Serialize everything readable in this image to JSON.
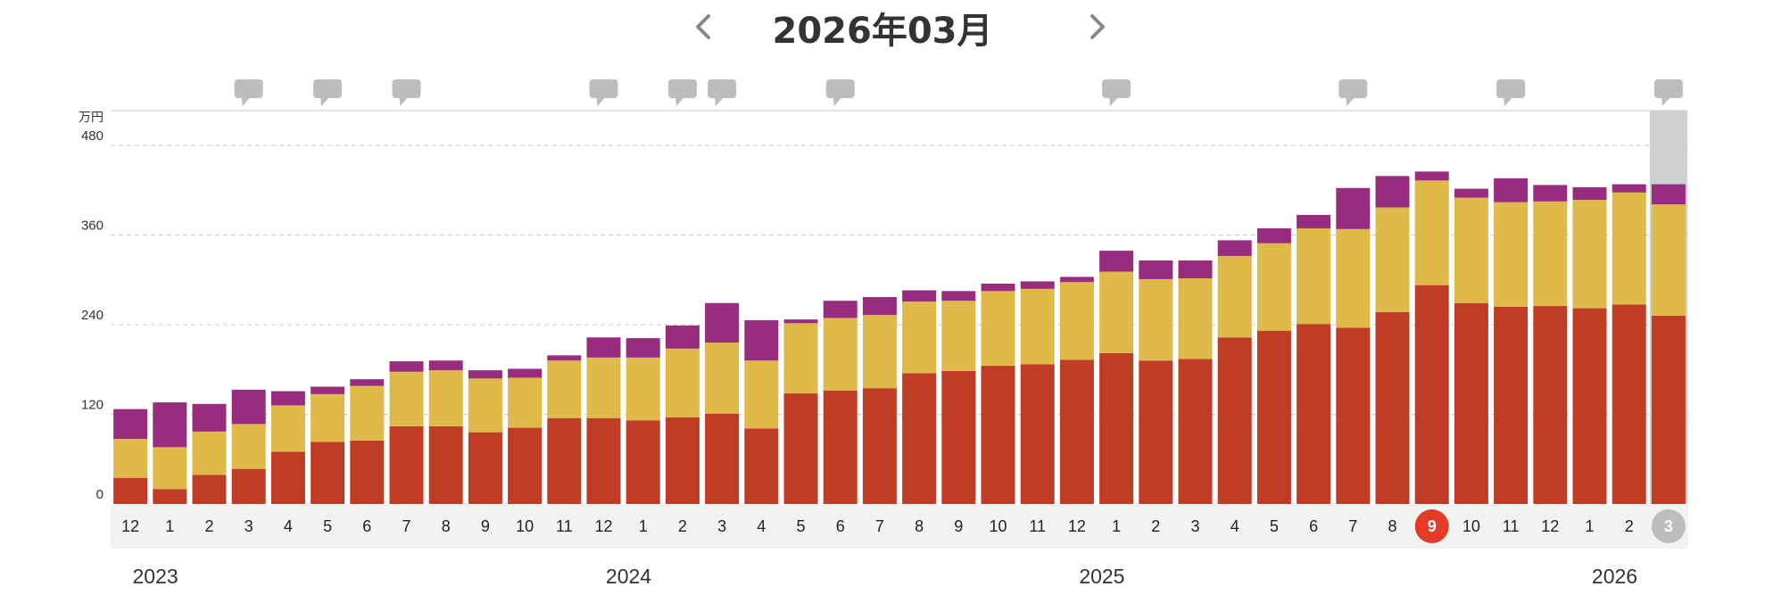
{
  "header": {
    "title": "2026年03月",
    "prev_icon": "chevron-left-icon",
    "next_icon": "chevron-right-icon"
  },
  "colors": {
    "primary": "#bf3c25",
    "secondary": "#dfba4b",
    "tertiary": "#9a2c80",
    "highlight": "#e53a25",
    "selected": "#bdbdbd",
    "comment": "#bdbdbd"
  },
  "chart_data": {
    "type": "bar",
    "stacked": true,
    "unit": "万円",
    "ylim": [
      0,
      480
    ],
    "yticks": [
      0,
      120,
      240,
      360,
      480
    ],
    "grid": true,
    "categories": [
      "12",
      "1",
      "2",
      "3",
      "4",
      "5",
      "6",
      "7",
      "8",
      "9",
      "10",
      "11",
      "12",
      "1",
      "2",
      "3",
      "4",
      "5",
      "6",
      "7",
      "8",
      "9",
      "10",
      "11",
      "12",
      "1",
      "2",
      "3",
      "4",
      "5",
      "6",
      "7",
      "8",
      "9",
      "10",
      "11",
      "12",
      "1",
      "2",
      "3"
    ],
    "years": [
      {
        "label": "2023",
        "month_index": 0
      },
      {
        "label": "2024",
        "month_index": 12
      },
      {
        "label": "2025",
        "month_index": 24
      },
      {
        "label": "2026",
        "month_index": 37
      }
    ],
    "series": [
      {
        "values": [
          35,
          20,
          39,
          47,
          70,
          83,
          85,
          104,
          104,
          96,
          102,
          115,
          115,
          112,
          116,
          121,
          101,
          148,
          152,
          155,
          175,
          178,
          185,
          187,
          193,
          202,
          192,
          194,
          223,
          232,
          241,
          236,
          257,
          293,
          269,
          264,
          265,
          262,
          267,
          252
        ]
      },
      {
        "values": [
          52,
          56,
          58,
          60,
          62,
          64,
          73,
          73,
          75,
          72,
          67,
          77,
          81,
          84,
          92,
          95,
          91,
          94,
          97,
          98,
          96,
          94,
          100,
          101,
          104,
          109,
          109,
          108,
          109,
          117,
          128,
          132,
          140,
          140,
          141,
          140,
          140,
          145,
          150,
          149
        ]
      },
      {
        "values": [
          40,
          60,
          37,
          46,
          19,
          10,
          9,
          14,
          13,
          11,
          12,
          7,
          27,
          26,
          31,
          53,
          54,
          5,
          23,
          24,
          15,
          13,
          10,
          10,
          7,
          28,
          25,
          24,
          21,
          20,
          18,
          55,
          42,
          12,
          12,
          32,
          22,
          17,
          11,
          27
        ]
      }
    ],
    "comment_markers": [
      3,
      5,
      7,
      12,
      14,
      15,
      18,
      25,
      31,
      35,
      39
    ],
    "highlight_index": 33,
    "selected_index": 39
  }
}
